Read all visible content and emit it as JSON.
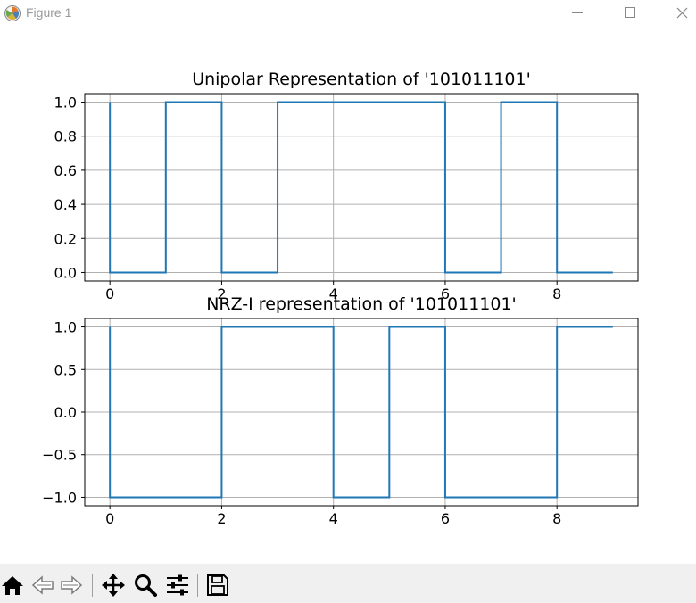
{
  "window": {
    "title": "Figure 1",
    "icons": {
      "app": "matplotlib-logo-icon",
      "minimize": "minimize-icon",
      "maximize": "maximize-icon",
      "close": "close-icon"
    }
  },
  "toolbar": {
    "buttons": [
      {
        "name": "home",
        "icon": "home-icon"
      },
      {
        "name": "back",
        "icon": "back-arrow-icon"
      },
      {
        "name": "forward",
        "icon": "forward-arrow-icon"
      },
      {
        "name": "pan",
        "icon": "move-arrows-icon"
      },
      {
        "name": "zoom",
        "icon": "magnifier-icon"
      },
      {
        "name": "configure-subplots",
        "icon": "sliders-icon"
      },
      {
        "name": "save",
        "icon": "floppy-disk-icon"
      }
    ]
  },
  "colors": {
    "line": "#1f77b4",
    "grid": "#b0b0b0",
    "axes": "#000000",
    "toolbar_bg": "#f0f0f0"
  },
  "chart_data": [
    {
      "type": "line",
      "drawstyle": "steps-post",
      "title": "Unipolar Representation of '101011101'",
      "xlabel": "",
      "ylabel": "",
      "xlim": [
        -0.45,
        9.45
      ],
      "ylim": [
        -0.05,
        1.05
      ],
      "xticks": [
        0,
        2,
        4,
        6,
        8
      ],
      "xtick_labels": [
        "0",
        "2",
        "4",
        "6",
        "8"
      ],
      "yticks": [
        0.0,
        0.2,
        0.4,
        0.6,
        0.8,
        1.0
      ],
      "ytick_labels": [
        "0.0",
        "0.2",
        "0.4",
        "0.6",
        "0.8",
        "1.0"
      ],
      "grid": true,
      "x": [
        0,
        0,
        1,
        2,
        3,
        4,
        5,
        6,
        7,
        8,
        9
      ],
      "y": [
        1,
        0,
        1,
        0,
        1,
        1,
        1,
        0,
        1,
        0,
        0
      ]
    },
    {
      "type": "line",
      "drawstyle": "steps-post",
      "title": "NRZ-I representation of '101011101'",
      "xlabel": "",
      "ylabel": "",
      "xlim": [
        -0.45,
        9.45
      ],
      "ylim": [
        -1.1,
        1.1
      ],
      "xticks": [
        0,
        2,
        4,
        6,
        8
      ],
      "xtick_labels": [
        "0",
        "2",
        "4",
        "6",
        "8"
      ],
      "yticks": [
        -1.0,
        -0.5,
        0.0,
        0.5,
        1.0
      ],
      "ytick_labels": [
        "−1.0",
        "−0.5",
        "0.0",
        "0.5",
        "1.0"
      ],
      "grid": true,
      "x": [
        0,
        0,
        1,
        2,
        3,
        4,
        5,
        6,
        7,
        8,
        9
      ],
      "y": [
        1,
        -1,
        -1,
        1,
        1,
        -1,
        1,
        -1,
        -1,
        1,
        1
      ]
    }
  ]
}
